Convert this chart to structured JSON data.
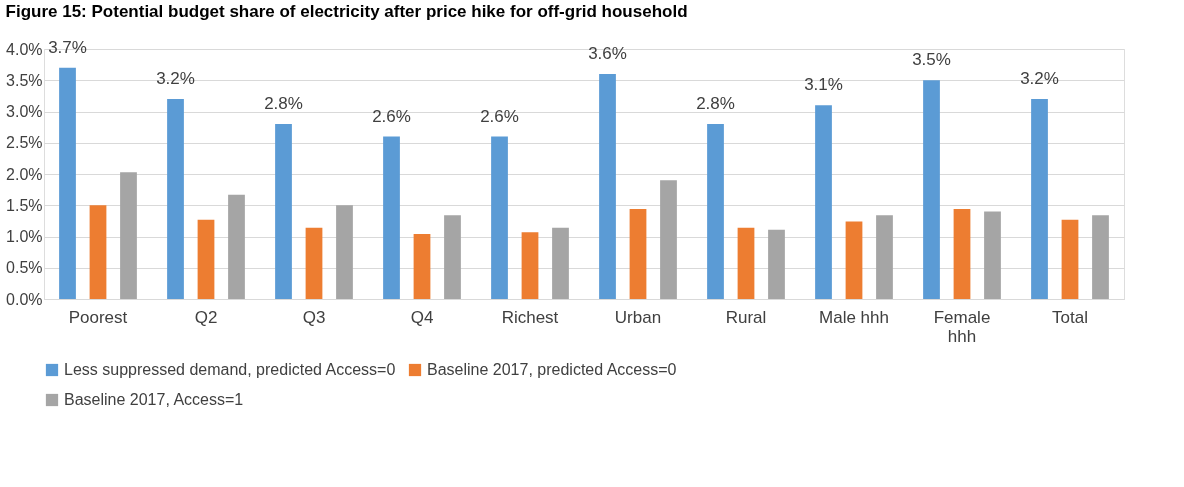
{
  "chart_data": {
    "type": "bar",
    "title": "Figure 15: Potential budget share of electricity after price hike for off-grid household",
    "categories": [
      "Poorest",
      "Q2",
      "Q3",
      "Q4",
      "Richest",
      "Urban",
      "Rural",
      "Male hhh",
      "Female hhh",
      "Total"
    ],
    "series": [
      {
        "name": "Less suppressed demand, predicted Access=0",
        "color": "#5b9bd5",
        "values": [
          3.7,
          3.2,
          2.8,
          2.6,
          2.6,
          3.6,
          2.8,
          3.1,
          3.5,
          3.2
        ],
        "value_labels": [
          "3.7%",
          "3.2%",
          "2.8%",
          "2.6%",
          "2.6%",
          "3.6%",
          "2.8%",
          "3.1%",
          "3.5%",
          "3.2%"
        ]
      },
      {
        "name": "Baseline 2017, predicted Access=0",
        "color": "#ed7d31",
        "values": [
          1.5,
          1.27,
          1.14,
          1.04,
          1.07,
          1.44,
          1.14,
          1.24,
          1.44,
          1.27
        ]
      },
      {
        "name": "Baseline 2017, Access=1",
        "color": "#a5a5a5",
        "values": [
          2.03,
          1.67,
          1.5,
          1.34,
          1.14,
          1.9,
          1.11,
          1.34,
          1.4,
          1.34
        ]
      }
    ],
    "ylim": [
      0,
      4
    ],
    "yticks": [
      {
        "value": 0,
        "label": "0.0%"
      },
      {
        "value": 0.5,
        "label": "0.5%"
      },
      {
        "value": 1,
        "label": "1.0%"
      },
      {
        "value": 1.5,
        "label": "1.5%"
      },
      {
        "value": 2,
        "label": "2.0%"
      },
      {
        "value": 2.5,
        "label": "2.5%"
      },
      {
        "value": 3,
        "label": "3.0%"
      },
      {
        "value": 3.5,
        "label": "3.5%"
      },
      {
        "value": 4,
        "label": "4.0%"
      }
    ],
    "grid": "y",
    "legend": "bottom"
  }
}
